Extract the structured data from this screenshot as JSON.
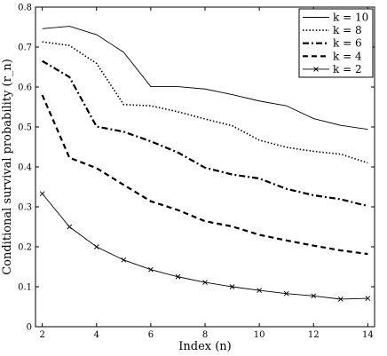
{
  "chart_data": {
    "type": "line",
    "xlabel": "Index (n)",
    "ylabel": "Conditional survival probability (r_n)",
    "xlim": [
      1.75,
      14.25
    ],
    "ylim": [
      0,
      0.8
    ],
    "x_ticks": [
      2,
      4,
      6,
      8,
      10,
      12,
      14
    ],
    "y_ticks": [
      0,
      0.1,
      0.2,
      0.3,
      0.4,
      0.5,
      0.6,
      0.7,
      0.8
    ],
    "grid": false,
    "legend_position": "top-right",
    "x": [
      2,
      3,
      4,
      5,
      6,
      7,
      8,
      9,
      10,
      11,
      12,
      13,
      14
    ],
    "series": [
      {
        "name": "k = 10",
        "style": "solid",
        "values": [
          0.746,
          0.752,
          0.731,
          0.687,
          0.601,
          0.601,
          0.595,
          0.581,
          0.565,
          0.553,
          0.521,
          0.504,
          0.494
        ]
      },
      {
        "name": "k = 8",
        "style": "dotted",
        "values": [
          0.713,
          0.704,
          0.659,
          0.556,
          0.553,
          0.538,
          0.52,
          0.503,
          0.467,
          0.449,
          0.439,
          0.432,
          0.41
        ]
      },
      {
        "name": "k = 6",
        "style": "dashdot",
        "values": [
          0.665,
          0.625,
          0.501,
          0.488,
          0.464,
          0.436,
          0.398,
          0.381,
          0.371,
          0.345,
          0.329,
          0.319,
          0.302
        ]
      },
      {
        "name": "k = 4",
        "style": "dashed",
        "values": [
          0.58,
          0.423,
          0.397,
          0.355,
          0.314,
          0.292,
          0.264,
          0.251,
          0.23,
          0.216,
          0.203,
          0.191,
          0.182
        ]
      },
      {
        "name": "k = 2",
        "style": "solid-x",
        "values": [
          0.333,
          0.25,
          0.2,
          0.167,
          0.143,
          0.125,
          0.111,
          0.1,
          0.091,
          0.083,
          0.077,
          0.069,
          0.071
        ]
      }
    ]
  }
}
